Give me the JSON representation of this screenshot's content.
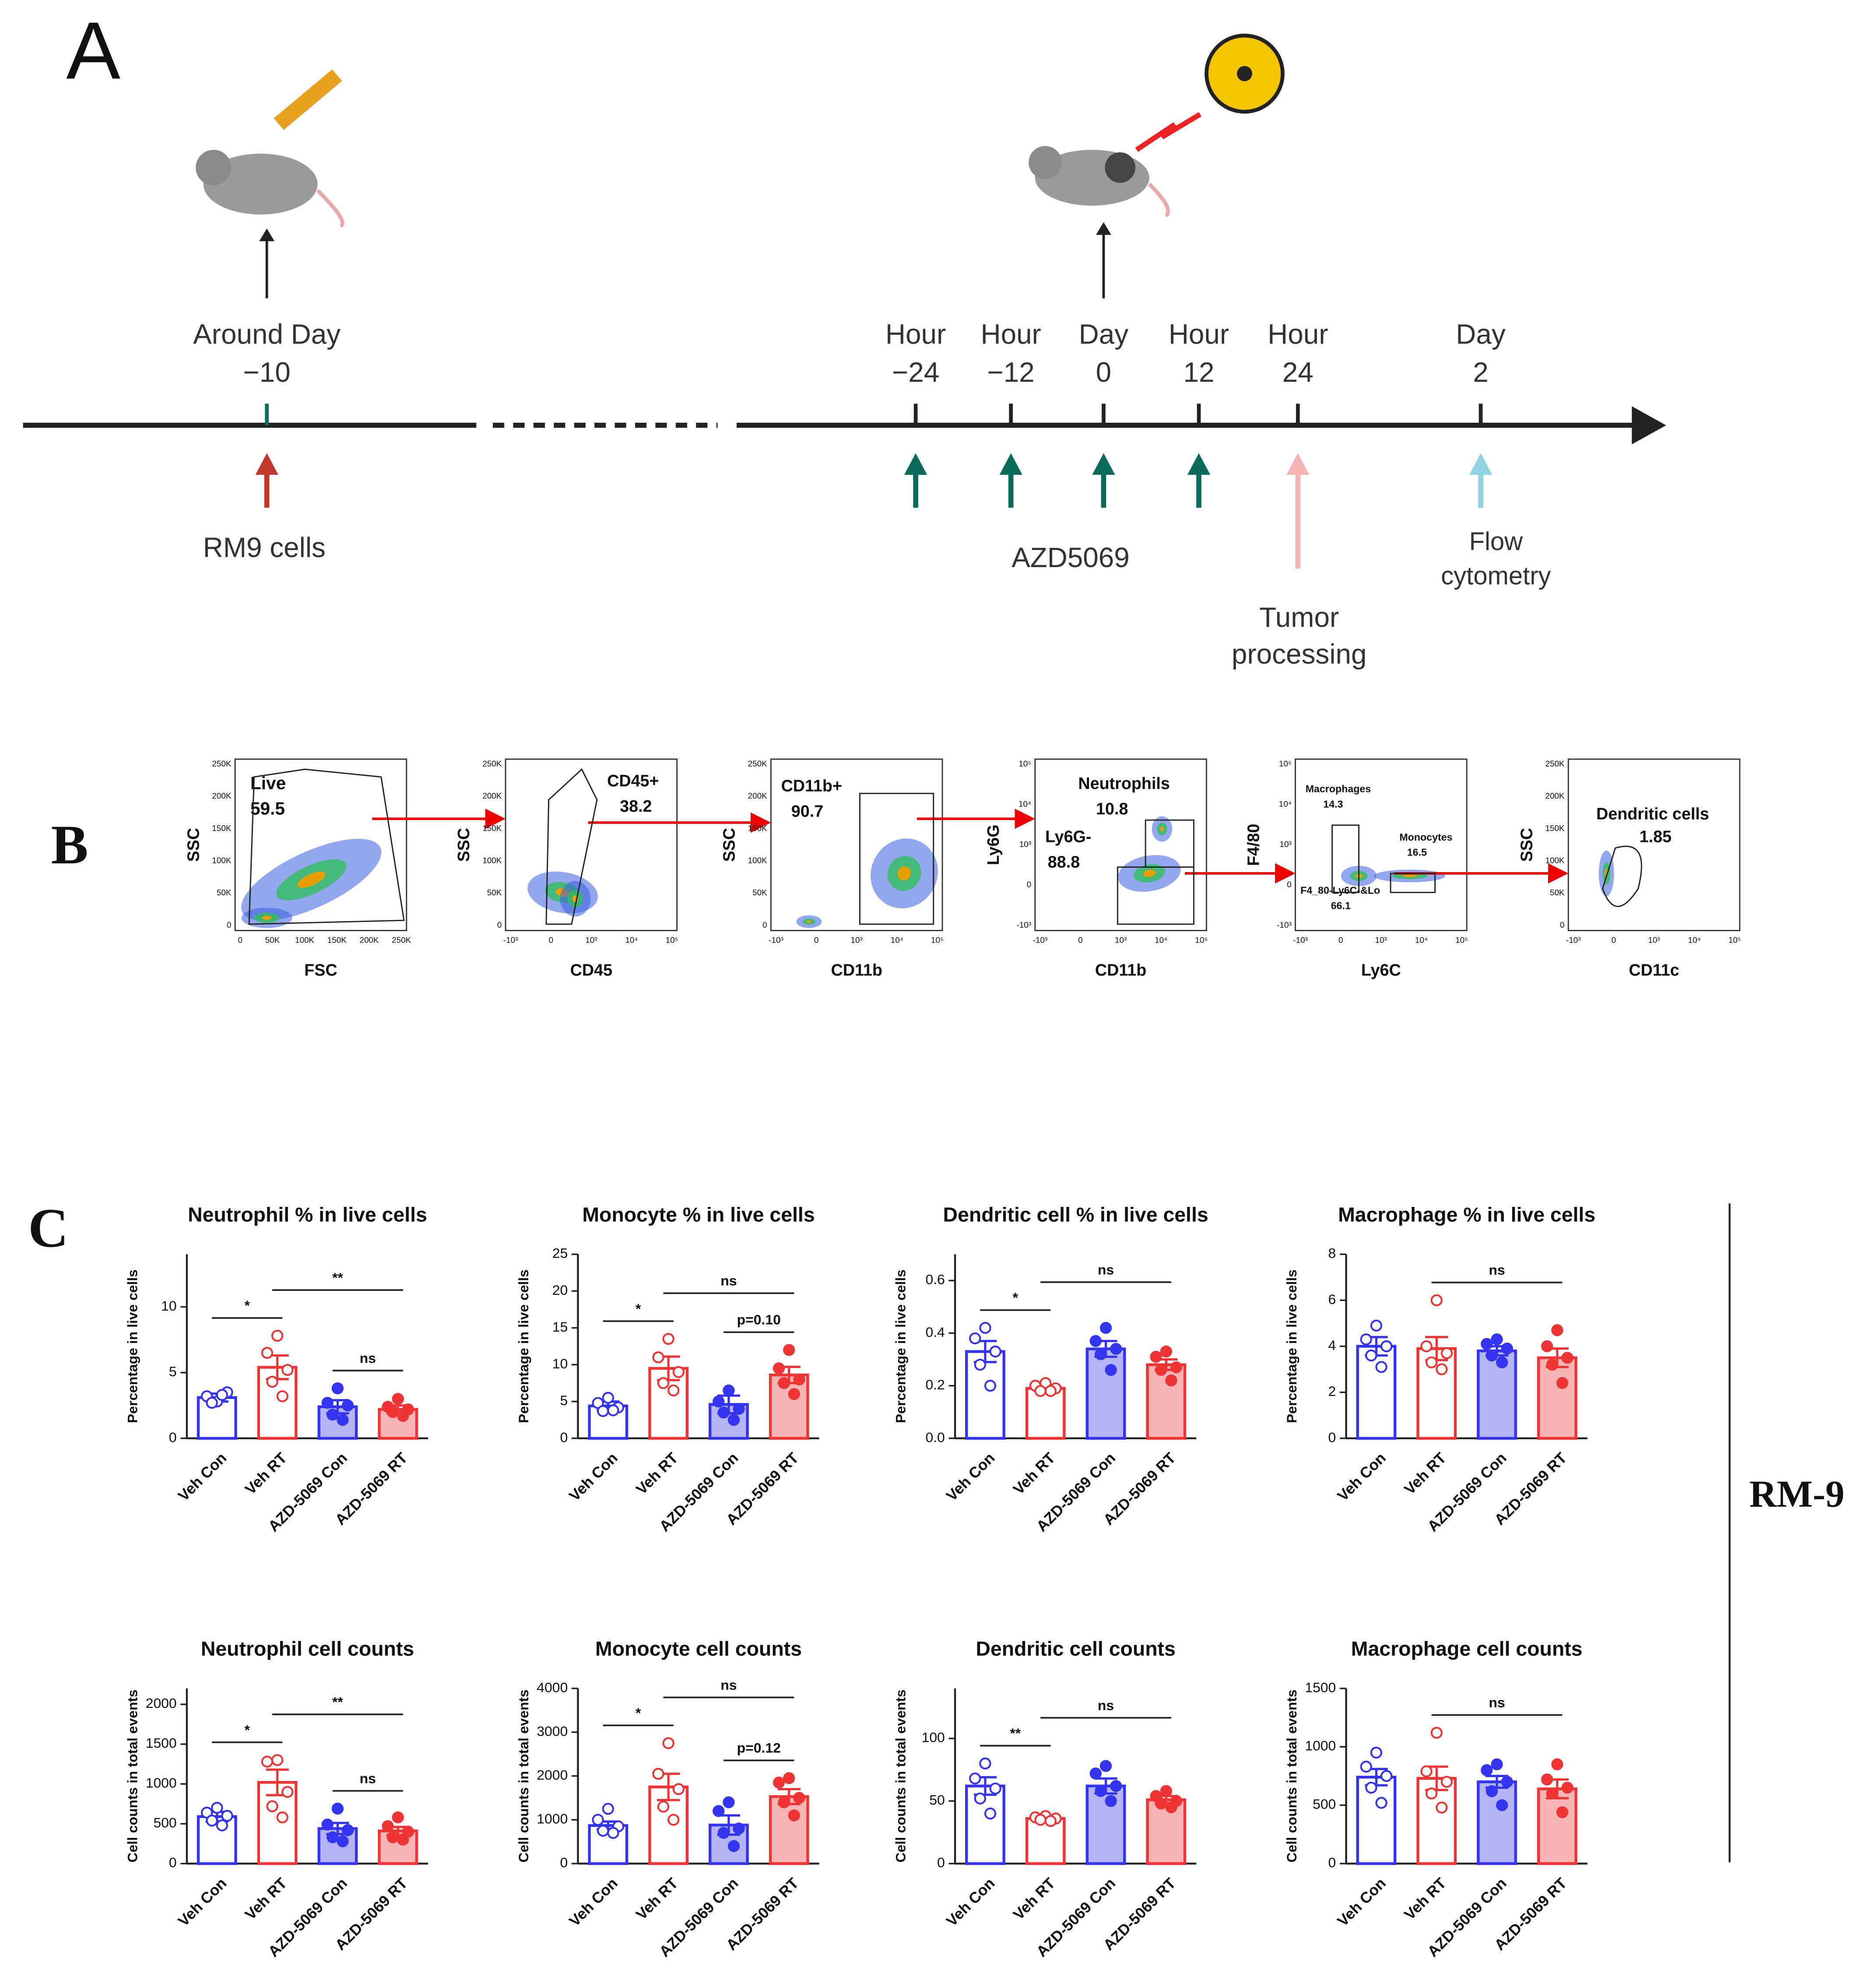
{
  "panel_labels": [
    "A",
    "B",
    "C"
  ],
  "timeline": {
    "ticks": [
      [
        "Around Day",
        "−10"
      ],
      [
        "Hour",
        "−24"
      ],
      [
        "Hour",
        "−12"
      ],
      [
        "Day",
        "0"
      ],
      [
        "Hour",
        "12"
      ],
      [
        "Hour",
        "24"
      ],
      [
        "Day",
        "2"
      ]
    ],
    "notes": [
      [
        "RM9 cells"
      ],
      [
        "AZD5069"
      ],
      [
        "Tumor",
        "processing"
      ],
      [
        "Flow",
        "cytometry"
      ]
    ]
  },
  "flow": [
    {
      "xlabel": "FSC",
      "ylabel": "SSC",
      "xticks": [
        "0",
        "50K",
        "100K",
        "150K",
        "200K",
        "250K"
      ],
      "yticks": [
        "0",
        "50K",
        "100K",
        "150K",
        "200K",
        "250K"
      ],
      "gates": [
        {
          "name": "Live",
          "value": 59.5
        }
      ]
    },
    {
      "xlabel": "CD45",
      "ylabel": "SSC",
      "xticks": [
        "-10³",
        "0",
        "10³",
        "10⁴",
        "10⁵"
      ],
      "yticks": [
        "0",
        "50K",
        "100K",
        "150K",
        "200K",
        "250K"
      ],
      "gates": [
        {
          "name": "CD45+",
          "value": 38.2
        }
      ]
    },
    {
      "xlabel": "CD11b",
      "ylabel": "SSC",
      "xticks": [
        "-10³",
        "0",
        "10³",
        "10⁴",
        "10⁵"
      ],
      "yticks": [
        "0",
        "50K",
        "100K",
        "150K",
        "200K",
        "250K"
      ],
      "gates": [
        {
          "name": "CD11b+",
          "value": 90.7
        }
      ]
    },
    {
      "xlabel": "CD11b",
      "ylabel": "Ly6G",
      "xticks": [
        "-10³",
        "0",
        "10³",
        "10⁴",
        "10⁵"
      ],
      "yticks": [
        "-10³",
        "0",
        "10³",
        "10⁴",
        "10⁵"
      ],
      "gates": [
        {
          "name": "Neutrophils",
          "value": 10.8
        },
        {
          "name": "Ly6G-",
          "value": 88.8
        }
      ]
    },
    {
      "xlabel": "Ly6C",
      "ylabel": "F4/80",
      "xticks": [
        "-10³",
        "0",
        "10³",
        "10⁴",
        "10⁵"
      ],
      "yticks": [
        "-10³",
        "0",
        "10³",
        "10⁴",
        "10⁵"
      ],
      "gates": [
        {
          "name": "Macrophages",
          "value": 14.3
        },
        {
          "name": "Monocytes",
          "value": 16.5
        },
        {
          "name": "F4_80-Ly6C-&Lo",
          "value": 66.1
        }
      ]
    },
    {
      "xlabel": "CD11c",
      "ylabel": "SSC",
      "xticks": [
        "-10³",
        "0",
        "10³",
        "10⁴",
        "10⁵"
      ],
      "yticks": [
        "0",
        "50K",
        "100K",
        "150K",
        "200K",
        "250K"
      ],
      "gates": [
        {
          "name": "Dendritic cells",
          "value": 1.85
        }
      ]
    }
  ],
  "side_label": "RM-9",
  "chart_data": [
    {
      "type": "bar",
      "title": "Neutrophil % in live cells",
      "ylabel": "Percentage in live cells",
      "categories": [
        "Veh Con",
        "Veh RT",
        "AZD-5069 Con",
        "AZD-5069 RT"
      ],
      "values": [
        3.1,
        5.4,
        2.4,
        2.2
      ],
      "errors": [
        0.3,
        0.9,
        0.5,
        0.3
      ],
      "points": [
        [
          2.8,
          3.2,
          3.5,
          2.7,
          3.3
        ],
        [
          7.8,
          6.5,
          5.2,
          4.3,
          3.2
        ],
        [
          3.8,
          2.7,
          2.5,
          1.8,
          1.4
        ],
        [
          3.0,
          2.4,
          2.2,
          2.0,
          1.7
        ]
      ],
      "colors": [
        "#3434ee",
        "#ee3434",
        "#3434ee",
        "#ee3434"
      ],
      "fills": [
        "#ffffff",
        "#ffffff",
        "#b4b4f4",
        "#f6b4b4"
      ],
      "ylim": [
        0,
        14
      ],
      "yticks": [
        0,
        5,
        10
      ],
      "brackets": [
        {
          "from": 0,
          "to": 1,
          "label": "*"
        },
        {
          "from": 2,
          "to": 3,
          "label": "ns"
        },
        {
          "from": 1,
          "to": 3,
          "label": "**"
        }
      ]
    },
    {
      "type": "bar",
      "title": "Monocyte % in live cells",
      "ylabel": "Percentage in live cells",
      "categories": [
        "Veh Con",
        "Veh RT",
        "AZD-5069 Con",
        "AZD-5069 RT"
      ],
      "values": [
        4.4,
        9.5,
        4.6,
        8.6
      ],
      "errors": [
        0.6,
        1.6,
        1.2,
        1.1
      ],
      "points": [
        [
          5.5,
          4.8,
          4.2,
          3.7,
          3.8
        ],
        [
          13.5,
          11,
          9,
          7.5,
          6.5
        ],
        [
          6.5,
          5,
          4,
          3.5,
          2.5
        ],
        [
          12,
          9.5,
          8,
          7.5,
          6
        ]
      ],
      "colors": [
        "#3434ee",
        "#ee3434",
        "#3434ee",
        "#ee3434"
      ],
      "fills": [
        "#ffffff",
        "#ffffff",
        "#b4b4f4",
        "#f6b4b4"
      ],
      "ylim": [
        0,
        25
      ],
      "yticks": [
        0,
        5,
        10,
        15,
        20,
        25
      ],
      "brackets": [
        {
          "from": 0,
          "to": 1,
          "label": "*"
        },
        {
          "from": 2,
          "to": 3,
          "label": "p=0.10"
        },
        {
          "from": 1,
          "to": 3,
          "label": "ns"
        }
      ]
    },
    {
      "type": "bar",
      "title": "Dendritic cell % in live cells",
      "ylabel": "Percentage in live cells",
      "categories": [
        "Veh Con",
        "Veh RT",
        "AZD-5069 Con",
        "AZD-5069 RT"
      ],
      "values": [
        0.33,
        0.19,
        0.34,
        0.28
      ],
      "errors": [
        0.04,
        0.01,
        0.03,
        0.02
      ],
      "points": [
        [
          0.42,
          0.38,
          0.33,
          0.28,
          0.2
        ],
        [
          0.21,
          0.2,
          0.19,
          0.18,
          0.18
        ],
        [
          0.42,
          0.37,
          0.34,
          0.32,
          0.26
        ],
        [
          0.33,
          0.31,
          0.27,
          0.26,
          0.22
        ]
      ],
      "colors": [
        "#3434ee",
        "#ee3434",
        "#3434ee",
        "#ee3434"
      ],
      "fills": [
        "#ffffff",
        "#ffffff",
        "#b4b4f4",
        "#f6b4b4"
      ],
      "ylim": [
        0,
        0.7
      ],
      "yticks": [
        {
          "value": 0,
          "label": "0.0"
        },
        0.2,
        0.4,
        0.6
      ],
      "brackets": [
        {
          "from": 0,
          "to": 1,
          "label": "*"
        },
        {
          "from": 1,
          "to": 3,
          "label": "ns"
        }
      ]
    },
    {
      "type": "bar",
      "title": "Macrophage % in live cells",
      "ylabel": "Percentage in live cells",
      "categories": [
        "Veh Con",
        "Veh RT",
        "AZD-5069 Con",
        "AZD-5069 RT"
      ],
      "values": [
        4.0,
        3.9,
        3.8,
        3.5
      ],
      "errors": [
        0.4,
        0.5,
        0.2,
        0.4
      ],
      "points": [
        [
          4.9,
          4.3,
          4.0,
          3.6,
          3.1
        ],
        [
          6.0,
          4.0,
          3.7,
          3.3,
          3.0
        ],
        [
          4.3,
          4.1,
          3.9,
          3.6,
          3.3
        ],
        [
          4.7,
          4.0,
          3.5,
          3.2,
          2.4
        ]
      ],
      "colors": [
        "#3434ee",
        "#ee3434",
        "#3434ee",
        "#ee3434"
      ],
      "fills": [
        "#ffffff",
        "#ffffff",
        "#b4b4f4",
        "#f6b4b4"
      ],
      "ylim": [
        0,
        8
      ],
      "yticks": [
        0,
        2,
        4,
        6,
        8
      ],
      "brackets": [
        {
          "from": 1,
          "to": 3,
          "label": "ns"
        }
      ]
    },
    {
      "type": "bar",
      "title": "Neutrophil cell counts",
      "ylabel": "Cell counts in total events",
      "categories": [
        "Veh Con",
        "Veh RT",
        "AZD-5069 Con",
        "AZD-5069 RT"
      ],
      "values": [
        590,
        1020,
        440,
        410
      ],
      "errors": [
        60,
        160,
        70,
        50
      ],
      "points": [
        [
          700,
          640,
          600,
          540,
          480
        ],
        [
          1300,
          1280,
          900,
          720,
          580
        ],
        [
          690,
          490,
          420,
          330,
          280
        ],
        [
          580,
          470,
          400,
          330,
          300
        ]
      ],
      "colors": [
        "#3434ee",
        "#ee3434",
        "#3434ee",
        "#ee3434"
      ],
      "fills": [
        "#ffffff",
        "#ffffff",
        "#b4b4f4",
        "#f6b4b4"
      ],
      "ylim": [
        0,
        2200
      ],
      "yticks": [
        0,
        500,
        1000,
        1500,
        2000
      ],
      "brackets": [
        {
          "from": 0,
          "to": 1,
          "label": "*"
        },
        {
          "from": 2,
          "to": 3,
          "label": "ns"
        },
        {
          "from": 1,
          "to": 3,
          "label": "**"
        }
      ]
    },
    {
      "type": "bar",
      "title": "Monocyte cell counts",
      "ylabel": "Cell counts in total events",
      "categories": [
        "Veh Con",
        "Veh RT",
        "AZD-5069 Con",
        "AZD-5069 RT"
      ],
      "values": [
        870,
        1750,
        880,
        1530
      ],
      "errors": [
        90,
        300,
        220,
        170
      ],
      "points": [
        [
          1250,
          1000,
          850,
          750,
          700
        ],
        [
          2750,
          2050,
          1700,
          1300,
          1000
        ],
        [
          1400,
          1200,
          800,
          700,
          400
        ],
        [
          1950,
          1850,
          1500,
          1400,
          1100
        ]
      ],
      "colors": [
        "#3434ee",
        "#ee3434",
        "#3434ee",
        "#ee3434"
      ],
      "fills": [
        "#ffffff",
        "#ffffff",
        "#b4b4f4",
        "#f6b4b4"
      ],
      "ylim": [
        0,
        4000
      ],
      "yticks": [
        0,
        1000,
        2000,
        3000,
        4000
      ],
      "brackets": [
        {
          "from": 0,
          "to": 1,
          "label": "*"
        },
        {
          "from": 2,
          "to": 3,
          "label": "p=0.12"
        },
        {
          "from": 1,
          "to": 3,
          "label": "ns"
        }
      ]
    },
    {
      "type": "bar",
      "title": "Dendritic cell counts",
      "ylabel": "Cell counts in total events",
      "categories": [
        "Veh Con",
        "Veh RT",
        "AZD-5069 Con",
        "AZD-5069 RT"
      ],
      "values": [
        62,
        36,
        62,
        51
      ],
      "errors": [
        7,
        2,
        6,
        3
      ],
      "points": [
        [
          80,
          68,
          60,
          52,
          40
        ],
        [
          38,
          37,
          36,
          35,
          34
        ],
        [
          78,
          72,
          62,
          58,
          50
        ],
        [
          58,
          54,
          50,
          48,
          45
        ]
      ],
      "colors": [
        "#3434ee",
        "#ee3434",
        "#3434ee",
        "#ee3434"
      ],
      "fills": [
        "#ffffff",
        "#ffffff",
        "#b4b4f4",
        "#f6b4b4"
      ],
      "ylim": [
        0,
        140
      ],
      "yticks": [
        0,
        50,
        100
      ],
      "brackets": [
        {
          "from": 0,
          "to": 1,
          "label": "**"
        },
        {
          "from": 1,
          "to": 3,
          "label": "ns"
        }
      ]
    },
    {
      "type": "bar",
      "title": "Macrophage cell counts",
      "ylabel": "Cell counts in total events",
      "categories": [
        "Veh Con",
        "Veh RT",
        "AZD-5069 Con",
        "AZD-5069 RT"
      ],
      "values": [
        740,
        730,
        700,
        640
      ],
      "errors": [
        70,
        100,
        50,
        80
      ],
      "points": [
        [
          950,
          830,
          750,
          650,
          520
        ],
        [
          1120,
          790,
          700,
          600,
          480
        ],
        [
          850,
          800,
          700,
          620,
          500
        ],
        [
          850,
          720,
          650,
          600,
          440
        ]
      ],
      "colors": [
        "#3434ee",
        "#ee3434",
        "#3434ee",
        "#ee3434"
      ],
      "fills": [
        "#ffffff",
        "#ffffff",
        "#b4b4f4",
        "#f6b4b4"
      ],
      "ylim": [
        0,
        1500
      ],
      "yticks": [
        0,
        500,
        1000,
        1500
      ],
      "brackets": [
        {
          "from": 1,
          "to": 3,
          "label": "ns"
        }
      ]
    }
  ]
}
